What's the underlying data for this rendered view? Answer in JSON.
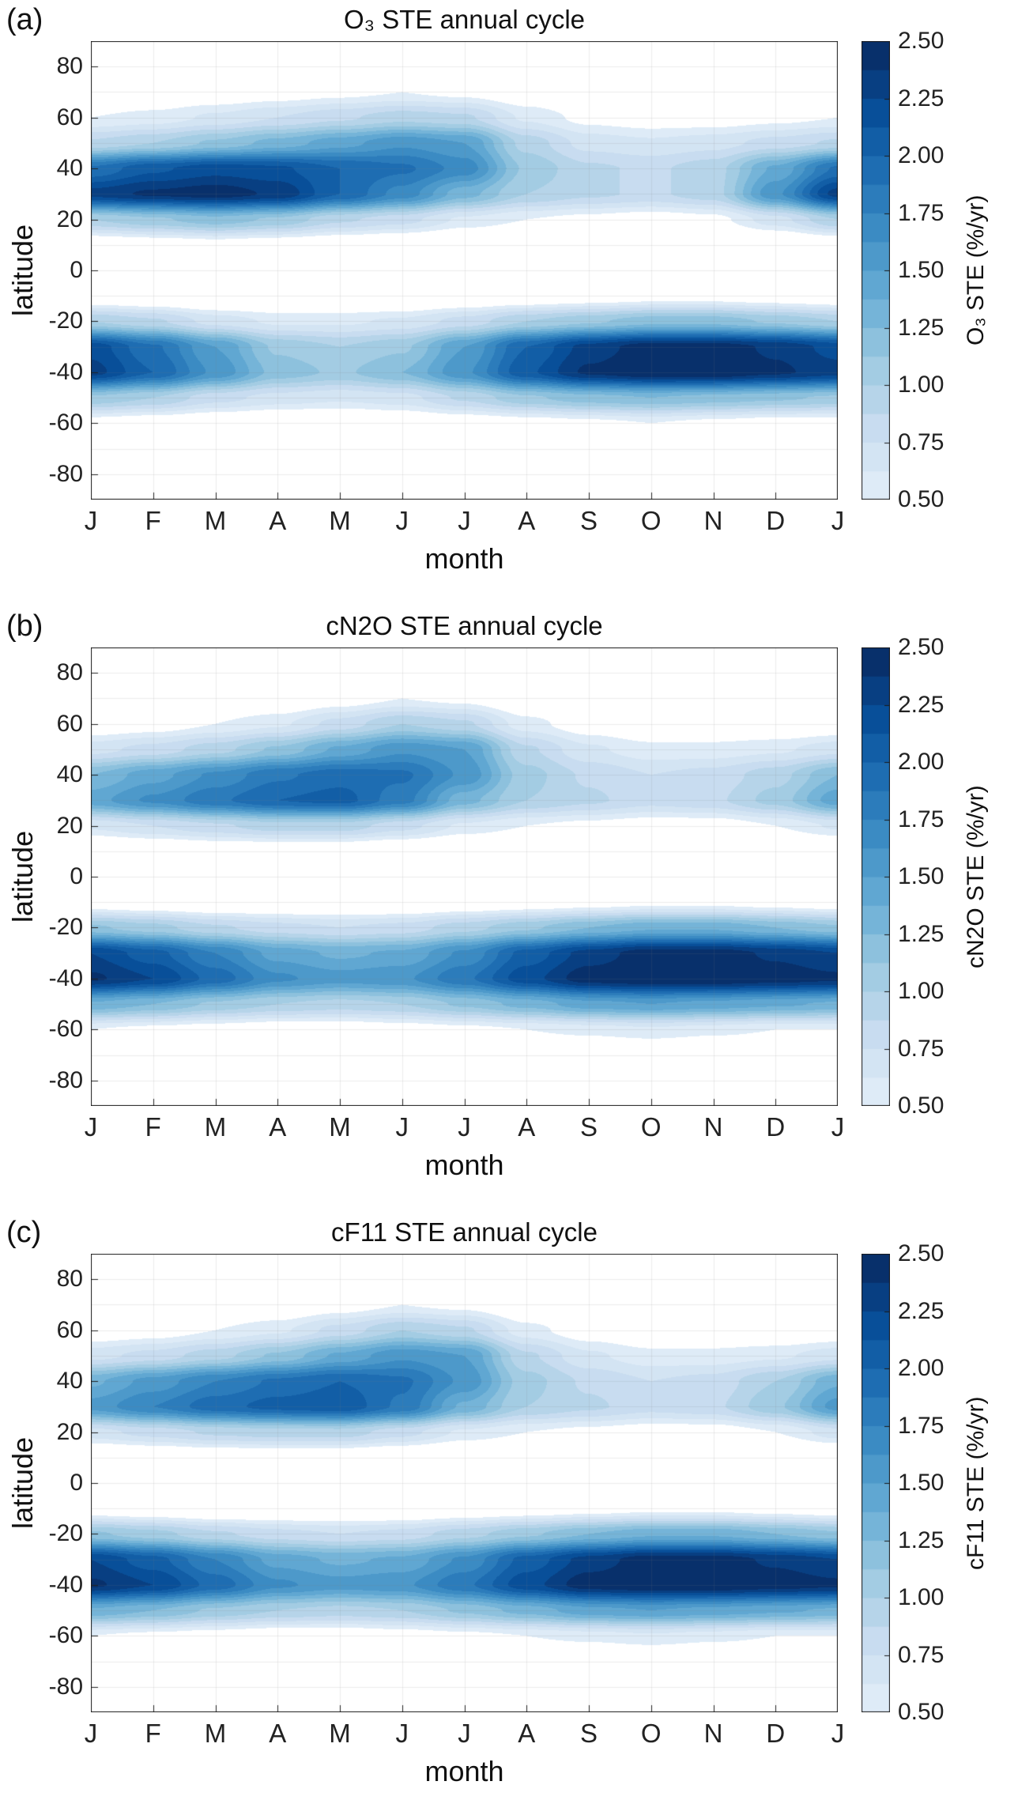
{
  "colormap": {
    "below_color": "#ffffff",
    "anchors": [
      "#deebf7",
      "#c6dbef",
      "#9ecae1",
      "#6baed6",
      "#4292c6",
      "#2171b5",
      "#08519c",
      "#08306b"
    ],
    "levels_min": 0.5,
    "levels_max": 2.5,
    "n_bands": 16
  },
  "chart_data": [
    {
      "panel_label": "(a)",
      "type": "heatmap",
      "title": "O₃ STE annual cycle",
      "xlabel": "month",
      "ylabel": "latitude",
      "x_ticklabels": [
        "J",
        "F",
        "M",
        "A",
        "M",
        "J",
        "J",
        "A",
        "S",
        "O",
        "N",
        "D",
        "J"
      ],
      "y_ticks": [
        80,
        60,
        40,
        20,
        0,
        -20,
        -40,
        -60,
        -80
      ],
      "ylim": [
        -90,
        90
      ],
      "latitudes": [
        90,
        80,
        70,
        60,
        50,
        40,
        30,
        20,
        10,
        0,
        -10,
        -20,
        -30,
        -40,
        -50,
        -60,
        -70,
        -80,
        -90
      ],
      "values": [
        [
          0,
          0,
          0,
          0,
          0,
          0,
          0,
          0,
          0,
          0,
          0,
          0,
          0
        ],
        [
          0.1,
          0.1,
          0.1,
          0.15,
          0.2,
          0.2,
          0.2,
          0.15,
          0.1,
          0.1,
          0.1,
          0.1,
          0.1
        ],
        [
          0.25,
          0.3,
          0.35,
          0.4,
          0.45,
          0.5,
          0.45,
          0.35,
          0.25,
          0.2,
          0.2,
          0.2,
          0.25
        ],
        [
          0.5,
          0.55,
          0.65,
          0.75,
          0.85,
          0.95,
          0.9,
          0.6,
          0.45,
          0.4,
          0.4,
          0.45,
          0.5
        ],
        [
          0.9,
          1.0,
          1.15,
          1.3,
          1.45,
          1.6,
          1.5,
          0.95,
          0.7,
          0.65,
          0.7,
          0.8,
          0.9
        ],
        [
          1.9,
          2.1,
          2.2,
          2.15,
          2.0,
          1.9,
          1.7,
          1.1,
          0.9,
          0.85,
          0.95,
          1.4,
          1.9
        ],
        [
          2.3,
          2.4,
          2.45,
          2.35,
          2.0,
          1.7,
          1.3,
          1.0,
          0.9,
          0.85,
          0.95,
          1.6,
          2.3
        ],
        [
          1.0,
          1.1,
          1.2,
          1.1,
          0.9,
          0.8,
          0.6,
          0.5,
          0.45,
          0.4,
          0.45,
          0.7,
          1.0
        ],
        [
          0.3,
          0.35,
          0.4,
          0.35,
          0.3,
          0.25,
          0.2,
          0.15,
          0.15,
          0.15,
          0.15,
          0.2,
          0.3
        ],
        [
          0.05,
          0.05,
          0.05,
          0.05,
          0.05,
          0.05,
          0.05,
          0.05,
          0.05,
          0.05,
          0.05,
          0.05,
          0.05
        ],
        [
          0.3,
          0.25,
          0.2,
          0.2,
          0.2,
          0.2,
          0.25,
          0.3,
          0.35,
          0.4,
          0.4,
          0.35,
          0.3
        ],
        [
          1.0,
          0.9,
          0.7,
          0.6,
          0.6,
          0.65,
          0.8,
          1.0,
          1.1,
          1.2,
          1.2,
          1.1,
          1.0
        ],
        [
          2.2,
          1.9,
          1.5,
          1.1,
          1.0,
          1.1,
          1.5,
          2.0,
          2.3,
          2.45,
          2.45,
          2.35,
          2.2
        ],
        [
          2.3,
          2.0,
          1.6,
          1.2,
          1.1,
          1.25,
          1.6,
          2.1,
          2.4,
          2.5,
          2.5,
          2.4,
          2.3
        ],
        [
          1.1,
          1.0,
          0.8,
          0.7,
          0.65,
          0.7,
          0.9,
          1.1,
          1.2,
          1.25,
          1.2,
          1.15,
          1.1
        ],
        [
          0.4,
          0.35,
          0.3,
          0.25,
          0.25,
          0.3,
          0.35,
          0.4,
          0.45,
          0.5,
          0.45,
          0.4,
          0.4
        ],
        [
          0.15,
          0.1,
          0.1,
          0.1,
          0.1,
          0.1,
          0.15,
          0.15,
          0.2,
          0.2,
          0.2,
          0.15,
          0.15
        ],
        [
          0,
          0,
          0,
          0,
          0,
          0,
          0,
          0,
          0,
          0,
          0,
          0,
          0
        ],
        [
          0,
          0,
          0,
          0,
          0,
          0,
          0,
          0,
          0,
          0,
          0,
          0,
          0
        ]
      ],
      "colorbar": {
        "label": "O₃ STE (%/yr)",
        "tick_labels": [
          "0.50",
          "0.75",
          "1.00",
          "1.25",
          "1.50",
          "1.75",
          "2.00",
          "2.25",
          "2.50"
        ],
        "range": [
          0.5,
          2.5
        ]
      }
    },
    {
      "panel_label": "(b)",
      "type": "heatmap",
      "title": "cN2O STE annual cycle",
      "xlabel": "month",
      "ylabel": "latitude",
      "x_ticklabels": [
        "J",
        "F",
        "M",
        "A",
        "M",
        "J",
        "J",
        "A",
        "S",
        "O",
        "N",
        "D",
        "J"
      ],
      "y_ticks": [
        80,
        60,
        40,
        20,
        0,
        -20,
        -40,
        -60,
        -80
      ],
      "ylim": [
        -90,
        90
      ],
      "latitudes": [
        90,
        80,
        70,
        60,
        50,
        40,
        30,
        20,
        10,
        0,
        -10,
        -20,
        -30,
        -40,
        -50,
        -60,
        -70,
        -80,
        -90
      ],
      "values": [
        [
          0,
          0,
          0,
          0,
          0,
          0,
          0,
          0,
          0,
          0,
          0,
          0,
          0
        ],
        [
          0.05,
          0.05,
          0.1,
          0.1,
          0.15,
          0.15,
          0.15,
          0.1,
          0.05,
          0.05,
          0.05,
          0.05,
          0.05
        ],
        [
          0.15,
          0.2,
          0.25,
          0.3,
          0.4,
          0.5,
          0.45,
          0.3,
          0.2,
          0.15,
          0.15,
          0.15,
          0.15
        ],
        [
          0.35,
          0.4,
          0.5,
          0.6,
          0.8,
          1.0,
          0.9,
          0.55,
          0.4,
          0.3,
          0.3,
          0.3,
          0.35
        ],
        [
          0.7,
          0.8,
          0.95,
          1.15,
          1.4,
          1.6,
          1.5,
          0.9,
          0.65,
          0.55,
          0.55,
          0.6,
          0.7
        ],
        [
          1.25,
          1.45,
          1.65,
          1.85,
          1.95,
          1.9,
          1.6,
          1.05,
          0.85,
          0.75,
          0.8,
          0.95,
          1.25
        ],
        [
          1.45,
          1.65,
          1.85,
          2.0,
          2.05,
          1.8,
          1.3,
          1.0,
          0.9,
          0.8,
          0.85,
          1.05,
          1.45
        ],
        [
          0.65,
          0.75,
          0.85,
          0.95,
          0.95,
          0.8,
          0.6,
          0.5,
          0.45,
          0.4,
          0.4,
          0.5,
          0.65
        ],
        [
          0.2,
          0.25,
          0.3,
          0.3,
          0.3,
          0.25,
          0.2,
          0.15,
          0.15,
          0.1,
          0.1,
          0.15,
          0.2
        ],
        [
          0.05,
          0.05,
          0.05,
          0.05,
          0.05,
          0.05,
          0.05,
          0.05,
          0.05,
          0.05,
          0.05,
          0.05,
          0.05
        ],
        [
          0.35,
          0.3,
          0.25,
          0.25,
          0.25,
          0.25,
          0.3,
          0.35,
          0.4,
          0.45,
          0.45,
          0.4,
          0.35
        ],
        [
          1.15,
          1.05,
          0.9,
          0.8,
          0.75,
          0.8,
          0.95,
          1.1,
          1.25,
          1.35,
          1.35,
          1.25,
          1.15
        ],
        [
          2.25,
          2.05,
          1.75,
          1.45,
          1.35,
          1.4,
          1.65,
          2.05,
          2.3,
          2.45,
          2.45,
          2.35,
          2.25
        ],
        [
          2.4,
          2.25,
          1.95,
          1.65,
          1.55,
          1.6,
          1.85,
          2.2,
          2.45,
          2.5,
          2.5,
          2.45,
          2.4
        ],
        [
          1.35,
          1.25,
          1.1,
          1.0,
          0.95,
          1.0,
          1.15,
          1.3,
          1.45,
          1.5,
          1.45,
          1.4,
          1.35
        ],
        [
          0.5,
          0.45,
          0.4,
          0.35,
          0.35,
          0.4,
          0.45,
          0.5,
          0.55,
          0.6,
          0.55,
          0.5,
          0.5
        ],
        [
          0.2,
          0.15,
          0.15,
          0.1,
          0.1,
          0.15,
          0.15,
          0.2,
          0.2,
          0.25,
          0.2,
          0.2,
          0.2
        ],
        [
          0,
          0,
          0,
          0,
          0,
          0,
          0,
          0,
          0,
          0,
          0,
          0,
          0
        ],
        [
          0,
          0,
          0,
          0,
          0,
          0,
          0,
          0,
          0,
          0,
          0,
          0,
          0
        ]
      ],
      "colorbar": {
        "label": "cN2O STE (%/yr)",
        "tick_labels": [
          "0.50",
          "0.75",
          "1.00",
          "1.25",
          "1.50",
          "1.75",
          "2.00",
          "2.25",
          "2.50"
        ],
        "range": [
          0.5,
          2.5
        ]
      }
    },
    {
      "panel_label": "(c)",
      "type": "heatmap",
      "title": "cF11 STE annual cycle",
      "xlabel": "month",
      "ylabel": "latitude",
      "x_ticklabels": [
        "J",
        "F",
        "M",
        "A",
        "M",
        "J",
        "J",
        "A",
        "S",
        "O",
        "N",
        "D",
        "J"
      ],
      "y_ticks": [
        80,
        60,
        40,
        20,
        0,
        -20,
        -40,
        -60,
        -80
      ],
      "ylim": [
        -90,
        90
      ],
      "latitudes": [
        90,
        80,
        70,
        60,
        50,
        40,
        30,
        20,
        10,
        0,
        -10,
        -20,
        -30,
        -40,
        -50,
        -60,
        -70,
        -80,
        -90
      ],
      "values": [
        [
          0,
          0,
          0,
          0,
          0,
          0,
          0,
          0,
          0,
          0,
          0,
          0,
          0
        ],
        [
          0.05,
          0.05,
          0.1,
          0.1,
          0.15,
          0.15,
          0.15,
          0.1,
          0.05,
          0.05,
          0.05,
          0.05,
          0.05
        ],
        [
          0.15,
          0.2,
          0.25,
          0.3,
          0.4,
          0.5,
          0.45,
          0.3,
          0.2,
          0.15,
          0.15,
          0.15,
          0.15
        ],
        [
          0.35,
          0.4,
          0.5,
          0.6,
          0.8,
          1.0,
          0.9,
          0.55,
          0.4,
          0.3,
          0.3,
          0.3,
          0.35
        ],
        [
          0.7,
          0.8,
          0.95,
          1.15,
          1.4,
          1.6,
          1.5,
          0.9,
          0.65,
          0.55,
          0.55,
          0.6,
          0.7
        ],
        [
          1.35,
          1.55,
          1.75,
          1.9,
          2.0,
          1.9,
          1.6,
          1.05,
          0.85,
          0.75,
          0.8,
          1.0,
          1.35
        ],
        [
          1.55,
          1.75,
          1.95,
          2.05,
          2.1,
          1.85,
          1.35,
          1.0,
          0.9,
          0.8,
          0.85,
          1.1,
          1.55
        ],
        [
          0.7,
          0.8,
          0.9,
          0.95,
          0.95,
          0.8,
          0.6,
          0.5,
          0.45,
          0.4,
          0.4,
          0.5,
          0.7
        ],
        [
          0.2,
          0.25,
          0.3,
          0.3,
          0.3,
          0.25,
          0.2,
          0.15,
          0.15,
          0.1,
          0.1,
          0.15,
          0.2
        ],
        [
          0.05,
          0.05,
          0.05,
          0.05,
          0.05,
          0.05,
          0.05,
          0.05,
          0.05,
          0.05,
          0.05,
          0.05,
          0.05
        ],
        [
          0.35,
          0.3,
          0.25,
          0.25,
          0.25,
          0.25,
          0.3,
          0.35,
          0.4,
          0.45,
          0.45,
          0.4,
          0.35
        ],
        [
          1.15,
          1.05,
          0.9,
          0.8,
          0.75,
          0.8,
          0.95,
          1.1,
          1.25,
          1.35,
          1.35,
          1.25,
          1.15
        ],
        [
          2.25,
          2.05,
          1.75,
          1.45,
          1.35,
          1.4,
          1.65,
          2.05,
          2.3,
          2.45,
          2.45,
          2.35,
          2.25
        ],
        [
          2.4,
          2.25,
          1.95,
          1.65,
          1.55,
          1.6,
          1.85,
          2.2,
          2.45,
          2.5,
          2.5,
          2.45,
          2.4
        ],
        [
          1.35,
          1.25,
          1.1,
          1.0,
          0.95,
          1.0,
          1.15,
          1.3,
          1.45,
          1.5,
          1.45,
          1.4,
          1.35
        ],
        [
          0.5,
          0.45,
          0.4,
          0.35,
          0.35,
          0.4,
          0.45,
          0.5,
          0.55,
          0.6,
          0.55,
          0.5,
          0.5
        ],
        [
          0.2,
          0.15,
          0.15,
          0.1,
          0.1,
          0.15,
          0.15,
          0.2,
          0.2,
          0.25,
          0.2,
          0.2,
          0.2
        ],
        [
          0,
          0,
          0,
          0,
          0,
          0,
          0,
          0,
          0,
          0,
          0,
          0,
          0
        ],
        [
          0,
          0,
          0,
          0,
          0,
          0,
          0,
          0,
          0,
          0,
          0,
          0,
          0
        ]
      ],
      "colorbar": {
        "label": "cF11 STE (%/yr)",
        "tick_labels": [
          "0.50",
          "0.75",
          "1.00",
          "1.25",
          "1.50",
          "1.75",
          "2.00",
          "2.25",
          "2.50"
        ],
        "range": [
          0.5,
          2.5
        ]
      }
    }
  ]
}
